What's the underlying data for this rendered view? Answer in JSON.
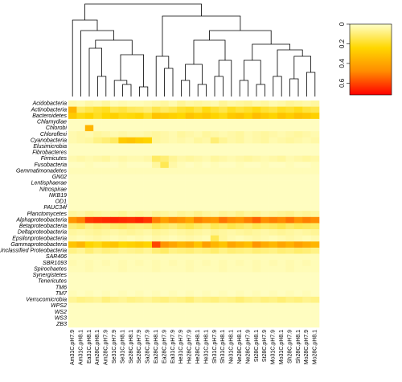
{
  "chart_data": {
    "type": "heatmap",
    "rows": [
      "Acidobacteria",
      "Actinobacteria",
      "Bacteroidetes",
      "Chlamydiae",
      "Chlorobi",
      "Chloroflexi",
      "Cyanobacteria",
      "Elusimicrobia",
      "Fibrobacteres",
      "Firmicutes",
      "Fusobacteria",
      "Gemmatimonadetes",
      "GN02",
      "Lentisphaerae",
      "Nitrospirae",
      "NKB19",
      "OD1",
      "PAUC34f",
      "Planctomycetes",
      "Alphaproteobacteria",
      "Betaproteobacteria",
      "Deltaproteobacteria",
      "Epsilonproteobacteria",
      "Gammaproteobacteria",
      "Unclassified Proteobacteria",
      "SAR406",
      "SBR1093",
      "Spirochaetes",
      "Synergistetes",
      "Tenericutes",
      "TM6",
      "TM7",
      "Verrucomicrobia",
      "WPS2",
      "WS2",
      "WS3",
      "ZB3"
    ],
    "columns": [
      "Am31C.pH7.9",
      "Am31C.pH8.1",
      "Ea31C.pH8.1",
      "Am28C.pH8.1",
      "Am28C.pH7.9",
      "Se31C.pH7.9",
      "Se31C.pH8.1",
      "Se28C.pH8.1",
      "Se28C.pH7.9",
      "Sa28C.pH7.9",
      "Ea28C.pH8.1",
      "Ea28C.pH7.9",
      "Ea31C.pH7.9",
      "He31C.pH7.9",
      "He28C.pH7.9",
      "He28C.pH8.1",
      "He31C.pH8.1",
      "Sh31C.pH7.9",
      "Sh31C.pH8.1",
      "Ne31C.pH8.1",
      "Ne28C.pH8.1",
      "Ne28C.pH7.9",
      "St28C.pH8.1",
      "St28C.pH7.9",
      "Mo31C.pH7.9",
      "Mo31C.pH8.1",
      "Sh28C.pH7.9",
      "Sh28C.pH8.1",
      "Mo28C.pH7.9",
      "Mo28C.pH8.1"
    ],
    "values": [
      [
        0.03,
        0.02,
        0.04,
        0.03,
        0.05,
        0.02,
        0.03,
        0.02,
        0.02,
        0.03,
        0.04,
        0.05,
        0.03,
        0.06,
        0.04,
        0.05,
        0.04,
        0.03,
        0.06,
        0.04,
        0.05,
        0.06,
        0.04,
        0.05,
        0.03,
        0.04,
        0.06,
        0.05,
        0.04,
        0.05
      ],
      [
        0.35,
        0.12,
        0.15,
        0.18,
        0.2,
        0.14,
        0.16,
        0.13,
        0.12,
        0.1,
        0.15,
        0.12,
        0.14,
        0.18,
        0.2,
        0.16,
        0.22,
        0.18,
        0.15,
        0.2,
        0.17,
        0.19,
        0.22,
        0.18,
        0.16,
        0.2,
        0.18,
        0.21,
        0.17,
        0.15
      ],
      [
        0.28,
        0.22,
        0.25,
        0.2,
        0.24,
        0.26,
        0.22,
        0.23,
        0.25,
        0.2,
        0.3,
        0.28,
        0.26,
        0.24,
        0.3,
        0.27,
        0.29,
        0.25,
        0.22,
        0.28,
        0.3,
        0.26,
        0.32,
        0.28,
        0.25,
        0.3,
        0.27,
        0.31,
        0.29,
        0.26
      ],
      [
        0.01,
        0.01,
        0.01,
        0.01,
        0.01,
        0.01,
        0.01,
        0.01,
        0.01,
        0.01,
        0.01,
        0.01,
        0.01,
        0.01,
        0.01,
        0.01,
        0.01,
        0.01,
        0.01,
        0.01,
        0.01,
        0.01,
        0.01,
        0.01,
        0.01,
        0.01,
        0.01,
        0.01,
        0.01,
        0.01
      ],
      [
        0.01,
        0.01,
        0.35,
        0.01,
        0.01,
        0.01,
        0.01,
        0.01,
        0.01,
        0.01,
        0.01,
        0.01,
        0.01,
        0.01,
        0.01,
        0.01,
        0.01,
        0.01,
        0.01,
        0.01,
        0.01,
        0.01,
        0.01,
        0.01,
        0.01,
        0.01,
        0.01,
        0.01,
        0.01,
        0.01
      ],
      [
        0.03,
        0.04,
        0.03,
        0.05,
        0.04,
        0.03,
        0.04,
        0.03,
        0.03,
        0.04,
        0.05,
        0.04,
        0.03,
        0.05,
        0.04,
        0.03,
        0.05,
        0.04,
        0.03,
        0.04,
        0.05,
        0.03,
        0.04,
        0.05,
        0.04,
        0.03,
        0.04,
        0.05,
        0.04,
        0.03
      ],
      [
        0.03,
        0.04,
        0.05,
        0.08,
        0.1,
        0.12,
        0.28,
        0.3,
        0.27,
        0.25,
        0.05,
        0.04,
        0.03,
        0.04,
        0.03,
        0.05,
        0.04,
        0.1,
        0.06,
        0.04,
        0.05,
        0.03,
        0.04,
        0.05,
        0.03,
        0.04,
        0.05,
        0.04,
        0.03,
        0.04
      ],
      [
        0.01,
        0.01,
        0.01,
        0.01,
        0.01,
        0.01,
        0.01,
        0.01,
        0.01,
        0.01,
        0.01,
        0.01,
        0.01,
        0.01,
        0.01,
        0.01,
        0.01,
        0.01,
        0.01,
        0.01,
        0.01,
        0.01,
        0.01,
        0.01,
        0.01,
        0.01,
        0.01,
        0.01,
        0.01,
        0.01
      ],
      [
        0.01,
        0.01,
        0.01,
        0.01,
        0.01,
        0.01,
        0.01,
        0.01,
        0.01,
        0.01,
        0.01,
        0.01,
        0.01,
        0.01,
        0.01,
        0.01,
        0.01,
        0.01,
        0.01,
        0.01,
        0.01,
        0.01,
        0.01,
        0.01,
        0.01,
        0.01,
        0.01,
        0.01,
        0.01,
        0.01
      ],
      [
        0.03,
        0.04,
        0.03,
        0.04,
        0.05,
        0.03,
        0.04,
        0.03,
        0.03,
        0.04,
        0.12,
        0.1,
        0.06,
        0.04,
        0.05,
        0.04,
        0.03,
        0.05,
        0.04,
        0.03,
        0.04,
        0.05,
        0.04,
        0.03,
        0.04,
        0.05,
        0.03,
        0.04,
        0.05,
        0.04
      ],
      [
        0.01,
        0.01,
        0.02,
        0.01,
        0.01,
        0.01,
        0.02,
        0.01,
        0.01,
        0.01,
        0.05,
        0.14,
        0.04,
        0.02,
        0.01,
        0.02,
        0.01,
        0.02,
        0.01,
        0.01,
        0.02,
        0.01,
        0.01,
        0.02,
        0.01,
        0.01,
        0.02,
        0.01,
        0.01,
        0.02
      ],
      [
        0.02,
        0.02,
        0.02,
        0.02,
        0.02,
        0.02,
        0.02,
        0.02,
        0.02,
        0.02,
        0.02,
        0.02,
        0.02,
        0.02,
        0.02,
        0.02,
        0.02,
        0.02,
        0.02,
        0.02,
        0.02,
        0.02,
        0.02,
        0.02,
        0.02,
        0.02,
        0.02,
        0.02,
        0.02,
        0.02
      ],
      [
        0.01,
        0.01,
        0.01,
        0.01,
        0.01,
        0.01,
        0.01,
        0.01,
        0.01,
        0.01,
        0.01,
        0.01,
        0.01,
        0.01,
        0.01,
        0.01,
        0.01,
        0.01,
        0.01,
        0.01,
        0.01,
        0.01,
        0.01,
        0.01,
        0.01,
        0.01,
        0.01,
        0.01,
        0.01,
        0.01
      ],
      [
        0.01,
        0.01,
        0.01,
        0.01,
        0.01,
        0.01,
        0.01,
        0.01,
        0.01,
        0.01,
        0.01,
        0.01,
        0.01,
        0.01,
        0.01,
        0.01,
        0.01,
        0.01,
        0.01,
        0.01,
        0.01,
        0.01,
        0.01,
        0.01,
        0.01,
        0.01,
        0.01,
        0.01,
        0.01,
        0.01
      ],
      [
        0.01,
        0.01,
        0.01,
        0.01,
        0.01,
        0.01,
        0.01,
        0.01,
        0.01,
        0.01,
        0.01,
        0.01,
        0.01,
        0.01,
        0.01,
        0.01,
        0.01,
        0.01,
        0.01,
        0.01,
        0.01,
        0.01,
        0.01,
        0.01,
        0.01,
        0.01,
        0.01,
        0.01,
        0.01,
        0.01
      ],
      [
        0.01,
        0.01,
        0.01,
        0.01,
        0.01,
        0.01,
        0.01,
        0.01,
        0.01,
        0.01,
        0.01,
        0.01,
        0.01,
        0.01,
        0.01,
        0.01,
        0.01,
        0.01,
        0.01,
        0.01,
        0.01,
        0.01,
        0.01,
        0.01,
        0.01,
        0.01,
        0.01,
        0.01,
        0.01,
        0.01
      ],
      [
        0.01,
        0.01,
        0.01,
        0.01,
        0.01,
        0.01,
        0.01,
        0.01,
        0.01,
        0.01,
        0.01,
        0.01,
        0.01,
        0.01,
        0.01,
        0.01,
        0.01,
        0.01,
        0.01,
        0.01,
        0.01,
        0.01,
        0.01,
        0.01,
        0.01,
        0.01,
        0.01,
        0.01,
        0.01,
        0.01
      ],
      [
        0.01,
        0.01,
        0.01,
        0.01,
        0.01,
        0.01,
        0.01,
        0.01,
        0.01,
        0.01,
        0.01,
        0.01,
        0.01,
        0.01,
        0.01,
        0.01,
        0.01,
        0.01,
        0.01,
        0.01,
        0.01,
        0.01,
        0.01,
        0.01,
        0.01,
        0.01,
        0.01,
        0.01,
        0.01,
        0.01
      ],
      [
        0.05,
        0.04,
        0.06,
        0.05,
        0.04,
        0.05,
        0.06,
        0.04,
        0.05,
        0.04,
        0.06,
        0.05,
        0.04,
        0.06,
        0.05,
        0.07,
        0.05,
        0.04,
        0.06,
        0.05,
        0.07,
        0.05,
        0.06,
        0.04,
        0.05,
        0.06,
        0.07,
        0.05,
        0.06,
        0.05
      ],
      [
        0.45,
        0.5,
        0.62,
        0.64,
        0.65,
        0.66,
        0.65,
        0.64,
        0.66,
        0.63,
        0.5,
        0.42,
        0.48,
        0.45,
        0.4,
        0.5,
        0.46,
        0.44,
        0.52,
        0.48,
        0.45,
        0.5,
        0.55,
        0.47,
        0.5,
        0.48,
        0.52,
        0.46,
        0.5,
        0.48
      ],
      [
        0.1,
        0.12,
        0.08,
        0.1,
        0.09,
        0.11,
        0.12,
        0.1,
        0.09,
        0.1,
        0.14,
        0.12,
        0.1,
        0.13,
        0.15,
        0.12,
        0.1,
        0.14,
        0.12,
        0.15,
        0.13,
        0.11,
        0.14,
        0.12,
        0.13,
        0.15,
        0.12,
        0.14,
        0.13,
        0.12
      ],
      [
        0.05,
        0.04,
        0.05,
        0.06,
        0.05,
        0.04,
        0.05,
        0.06,
        0.05,
        0.04,
        0.06,
        0.05,
        0.04,
        0.05,
        0.06,
        0.05,
        0.04,
        0.06,
        0.05,
        0.04,
        0.05,
        0.06,
        0.05,
        0.04,
        0.05,
        0.06,
        0.05,
        0.04,
        0.05,
        0.06
      ],
      [
        0.03,
        0.02,
        0.03,
        0.04,
        0.03,
        0.02,
        0.03,
        0.02,
        0.03,
        0.02,
        0.04,
        0.03,
        0.02,
        0.03,
        0.04,
        0.03,
        0.02,
        0.14,
        0.05,
        0.03,
        0.02,
        0.03,
        0.04,
        0.03,
        0.02,
        0.03,
        0.04,
        0.03,
        0.02,
        0.03
      ],
      [
        0.3,
        0.35,
        0.25,
        0.22,
        0.28,
        0.3,
        0.24,
        0.26,
        0.28,
        0.25,
        0.6,
        0.45,
        0.4,
        0.35,
        0.38,
        0.3,
        0.42,
        0.35,
        0.3,
        0.4,
        0.36,
        0.32,
        0.45,
        0.38,
        0.34,
        0.4,
        0.36,
        0.42,
        0.38,
        0.35
      ],
      [
        0.08,
        0.06,
        0.1,
        0.07,
        0.09,
        0.08,
        0.06,
        0.07,
        0.08,
        0.06,
        0.1,
        0.12,
        0.08,
        0.09,
        0.1,
        0.08,
        0.09,
        0.11,
        0.08,
        0.1,
        0.09,
        0.08,
        0.1,
        0.09,
        0.08,
        0.1,
        0.09,
        0.11,
        0.1,
        0.08
      ],
      [
        0.02,
        0.02,
        0.02,
        0.02,
        0.02,
        0.02,
        0.02,
        0.02,
        0.02,
        0.02,
        0.02,
        0.02,
        0.02,
        0.02,
        0.02,
        0.02,
        0.02,
        0.02,
        0.02,
        0.02,
        0.02,
        0.02,
        0.02,
        0.02,
        0.02,
        0.02,
        0.02,
        0.02,
        0.02,
        0.02
      ],
      [
        0.03,
        0.02,
        0.03,
        0.02,
        0.03,
        0.02,
        0.03,
        0.02,
        0.03,
        0.02,
        0.03,
        0.02,
        0.03,
        0.02,
        0.03,
        0.02,
        0.03,
        0.02,
        0.03,
        0.02,
        0.03,
        0.02,
        0.03,
        0.02,
        0.03,
        0.02,
        0.03,
        0.02,
        0.03,
        0.02
      ],
      [
        0.02,
        0.02,
        0.03,
        0.02,
        0.02,
        0.02,
        0.03,
        0.02,
        0.02,
        0.02,
        0.03,
        0.02,
        0.02,
        0.02,
        0.03,
        0.02,
        0.02,
        0.02,
        0.03,
        0.02,
        0.02,
        0.02,
        0.03,
        0.02,
        0.02,
        0.02,
        0.03,
        0.02,
        0.02,
        0.02
      ],
      [
        0.01,
        0.01,
        0.01,
        0.01,
        0.01,
        0.01,
        0.01,
        0.01,
        0.01,
        0.01,
        0.01,
        0.01,
        0.01,
        0.01,
        0.01,
        0.01,
        0.01,
        0.01,
        0.01,
        0.01,
        0.01,
        0.01,
        0.01,
        0.01,
        0.01,
        0.01,
        0.01,
        0.01,
        0.01,
        0.01
      ],
      [
        0.01,
        0.01,
        0.01,
        0.01,
        0.01,
        0.01,
        0.01,
        0.01,
        0.01,
        0.01,
        0.01,
        0.01,
        0.01,
        0.01,
        0.01,
        0.01,
        0.01,
        0.01,
        0.01,
        0.01,
        0.01,
        0.01,
        0.01,
        0.01,
        0.01,
        0.01,
        0.01,
        0.01,
        0.01,
        0.01
      ],
      [
        0.01,
        0.01,
        0.01,
        0.01,
        0.01,
        0.01,
        0.01,
        0.01,
        0.01,
        0.01,
        0.01,
        0.01,
        0.01,
        0.01,
        0.01,
        0.01,
        0.01,
        0.01,
        0.01,
        0.01,
        0.01,
        0.01,
        0.01,
        0.01,
        0.01,
        0.01,
        0.01,
        0.01,
        0.01,
        0.01
      ],
      [
        0.02,
        0.01,
        0.02,
        0.01,
        0.02,
        0.01,
        0.02,
        0.01,
        0.02,
        0.01,
        0.02,
        0.01,
        0.02,
        0.01,
        0.02,
        0.01,
        0.02,
        0.01,
        0.02,
        0.01,
        0.02,
        0.01,
        0.02,
        0.01,
        0.02,
        0.01,
        0.02,
        0.01,
        0.02,
        0.01
      ],
      [
        0.06,
        0.08,
        0.07,
        0.06,
        0.09,
        0.07,
        0.06,
        0.08,
        0.07,
        0.06,
        0.08,
        0.09,
        0.07,
        0.08,
        0.1,
        0.07,
        0.08,
        0.09,
        0.07,
        0.08,
        0.1,
        0.08,
        0.07,
        0.09,
        0.08,
        0.1,
        0.08,
        0.09,
        0.07,
        0.08
      ],
      [
        0.01,
        0.01,
        0.01,
        0.01,
        0.01,
        0.01,
        0.01,
        0.01,
        0.01,
        0.01,
        0.01,
        0.01,
        0.01,
        0.01,
        0.01,
        0.01,
        0.01,
        0.01,
        0.01,
        0.01,
        0.01,
        0.01,
        0.01,
        0.01,
        0.01,
        0.01,
        0.01,
        0.01,
        0.01,
        0.01
      ],
      [
        0.01,
        0.01,
        0.01,
        0.01,
        0.01,
        0.01,
        0.01,
        0.01,
        0.01,
        0.01,
        0.01,
        0.01,
        0.01,
        0.01,
        0.01,
        0.01,
        0.01,
        0.01,
        0.01,
        0.01,
        0.01,
        0.01,
        0.01,
        0.01,
        0.01,
        0.01,
        0.01,
        0.01,
        0.01,
        0.01
      ],
      [
        0.01,
        0.01,
        0.01,
        0.01,
        0.01,
        0.01,
        0.01,
        0.01,
        0.01,
        0.01,
        0.01,
        0.01,
        0.01,
        0.01,
        0.01,
        0.01,
        0.01,
        0.01,
        0.01,
        0.01,
        0.01,
        0.01,
        0.01,
        0.01,
        0.01,
        0.01,
        0.01,
        0.01,
        0.01,
        0.01
      ],
      [
        0.01,
        0.01,
        0.01,
        0.01,
        0.01,
        0.01,
        0.01,
        0.01,
        0.01,
        0.01,
        0.01,
        0.01,
        0.01,
        0.01,
        0.01,
        0.01,
        0.01,
        0.01,
        0.01,
        0.01,
        0.01,
        0.01,
        0.01,
        0.01,
        0.01,
        0.01,
        0.01,
        0.01,
        0.01,
        0.01
      ]
    ],
    "colorscale": [
      "#ffffc8",
      "#ffd700",
      "#ff8c00",
      "#ff0000"
    ],
    "keylim": [
      0,
      0.72
    ],
    "keyticks": [
      0,
      0.2,
      0.4,
      0.6
    ]
  }
}
